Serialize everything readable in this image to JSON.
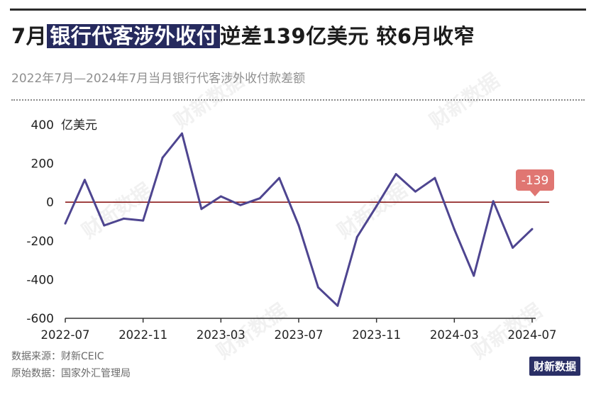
{
  "title": {
    "prefix": "7月",
    "highlight": "银行代客涉外收付",
    "suffix": "逆差139亿美元 较6月收窄"
  },
  "subtitle": "2022年7月—2024年7月当月银行代客涉外收付款差额",
  "footer": {
    "source": "数据来源：财新CEIC",
    "raw": "原始数据：国家外汇管理局"
  },
  "brand": "财新数据",
  "watermark": "财新数据",
  "colors": {
    "line": "#4e4590",
    "zero_line": "#8b1a1a",
    "callout": "#e07672",
    "title_highlight": "#262a5e"
  },
  "chart_data": {
    "type": "line",
    "title": "7月银行代客涉外收付逆差139亿美元 较6月收窄",
    "subtitle": "2022年7月—2024年7月当月银行代客涉外收付款差额",
    "unit_label": "亿美元",
    "ylim": [
      -600,
      400
    ],
    "yticks": [
      400,
      200,
      0,
      -200,
      -400,
      -600
    ],
    "xtick_labels": [
      "2022-07",
      "2022-11",
      "2023-03",
      "2023-07",
      "2023-11",
      "2024-03",
      "2024-07"
    ],
    "x": [
      "2022-07",
      "2022-08",
      "2022-09",
      "2022-10",
      "2022-11",
      "2022-12",
      "2023-01",
      "2023-02",
      "2023-03",
      "2023-04",
      "2023-05",
      "2023-06",
      "2023-07",
      "2023-08",
      "2023-09",
      "2023-10",
      "2023-11",
      "2023-12",
      "2024-01",
      "2024-02",
      "2024-03",
      "2024-04",
      "2024-05",
      "2024-06",
      "2024-07"
    ],
    "values": [
      -110,
      115,
      -120,
      -85,
      -95,
      230,
      355,
      -35,
      30,
      -15,
      20,
      125,
      -120,
      -440,
      -535,
      -180,
      -20,
      145,
      55,
      125,
      -140,
      -380,
      5,
      -235,
      -139
    ],
    "reference_line": 0,
    "annotation": {
      "label": "-139",
      "index": 24
    },
    "grid": false
  }
}
